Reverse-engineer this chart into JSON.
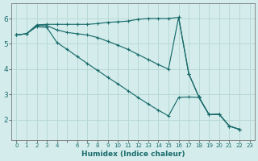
{
  "xlabel": "Humidex (Indice chaleur)",
  "bg_color": "#d4edec",
  "grid_color": "#b8d8d6",
  "line_color": "#1a6b6b",
  "xlim": [
    -0.5,
    23.5
  ],
  "ylim": [
    1.2,
    6.6
  ],
  "yticks": [
    2,
    3,
    4,
    5,
    6
  ],
  "x_vals": [
    0,
    1,
    2,
    3,
    4,
    5,
    6,
    7,
    8,
    9,
    10,
    11,
    12,
    13,
    14,
    15,
    16,
    17,
    18,
    19,
    20,
    21,
    22,
    23
  ],
  "series": [
    [
      5.35,
      5.4,
      5.75,
      5.77,
      5.77,
      5.77,
      5.77,
      5.77,
      5.8,
      5.85,
      5.87,
      5.9,
      5.97,
      6.0,
      6.0,
      6.0,
      6.05,
      3.82,
      2.9,
      2.2,
      2.22,
      1.75,
      1.62,
      null
    ],
    [
      5.35,
      5.4,
      5.72,
      5.72,
      5.55,
      5.45,
      5.4,
      5.35,
      5.25,
      5.1,
      4.95,
      4.78,
      4.58,
      4.38,
      4.18,
      4.0,
      6.05,
      3.82,
      2.9,
      2.2,
      2.22,
      1.75,
      1.62,
      null
    ],
    [
      5.35,
      5.4,
      5.68,
      5.65,
      5.05,
      4.78,
      4.5,
      4.22,
      3.95,
      3.68,
      3.42,
      3.15,
      2.88,
      2.62,
      2.38,
      2.15,
      2.88,
      2.9,
      2.88,
      2.2,
      2.22,
      1.75,
      1.62,
      null
    ]
  ],
  "xtick_labels": [
    "0",
    "1",
    "2",
    "3",
    "4",
    "",
    "6",
    "7",
    "8",
    "9",
    "10",
    "11",
    "12",
    "13",
    "14",
    "15",
    "16",
    "17",
    "18",
    "19",
    "20",
    "21",
    "22",
    "23"
  ]
}
